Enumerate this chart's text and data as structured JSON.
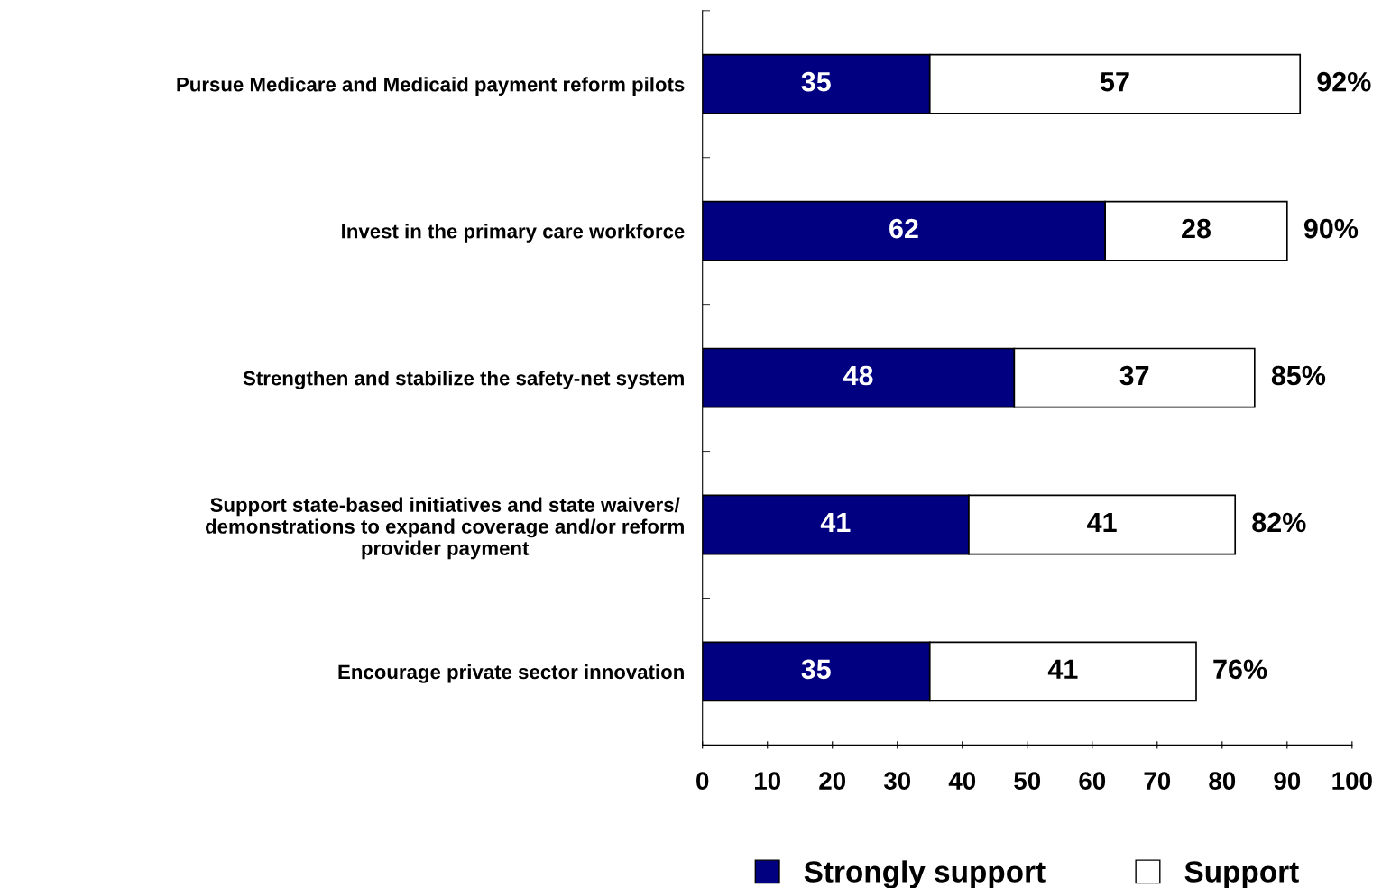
{
  "chart_data": {
    "type": "bar",
    "orientation": "horizontal",
    "stacked": true,
    "categories": [
      "Pursue Medicare and Medicaid payment reform pilots",
      "Invest in the primary care workforce",
      "Strengthen and stabilize the safety-net system",
      "Support state-based initiatives and state waivers/\ndemonstrations to expand coverage and/or reform\nprovider payment",
      "Encourage private sector innovation"
    ],
    "series": [
      {
        "name": "Strongly support",
        "color": "#000080",
        "values": [
          35,
          62,
          48,
          41,
          35
        ]
      },
      {
        "name": "Support",
        "color": "#ffffff",
        "values": [
          57,
          28,
          37,
          41,
          41
        ]
      }
    ],
    "totals": [
      "92%",
      "90%",
      "85%",
      "82%",
      "76%"
    ],
    "data_labels": true,
    "xlim": [
      0,
      100
    ],
    "xticks": [
      0,
      10,
      20,
      30,
      40,
      50,
      60,
      70,
      80,
      90,
      100
    ],
    "grid": false,
    "legend": "bottom"
  }
}
